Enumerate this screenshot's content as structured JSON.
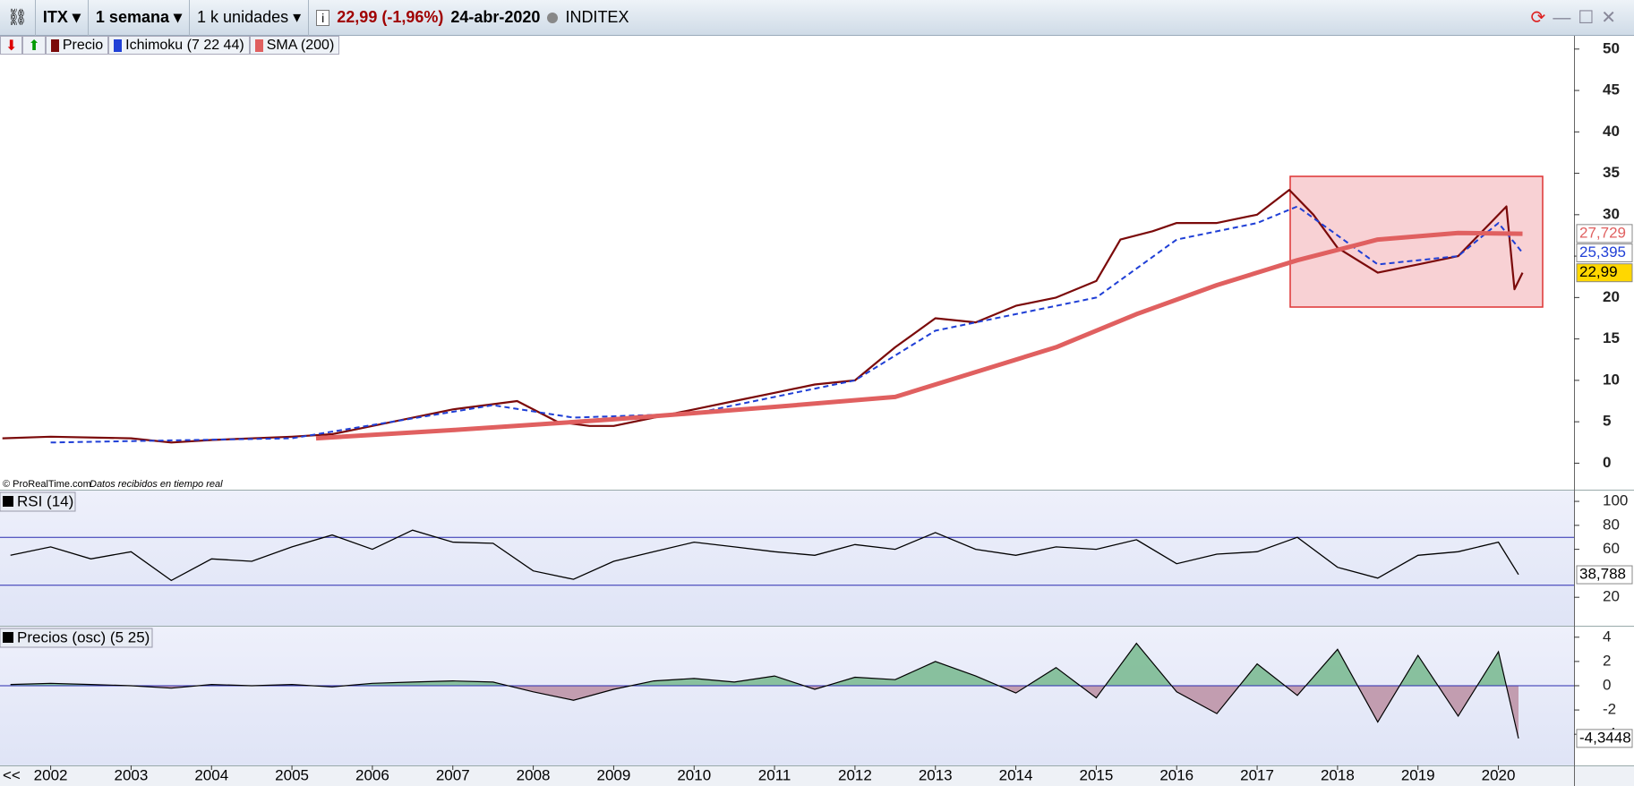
{
  "toolbar": {
    "symbol": "ITX",
    "period": "1 semana",
    "units": "1 k unidades",
    "price_change": "22,99 (-1,96%)",
    "date": "24-abr-2020",
    "name": "INDITEX"
  },
  "credit": {
    "site": "© ProRealTime.com",
    "note": "Datos recibidos en tiempo real"
  },
  "nav": "<<",
  "chart_data": [
    {
      "type": "line",
      "xlim": [
        2001.37,
        2020.94
      ],
      "ylim": [
        -3.2,
        51.6
      ],
      "yticks": [
        0,
        5,
        10,
        15,
        20,
        25,
        30,
        35,
        40,
        45,
        50
      ],
      "series": [
        {
          "name": "Precio",
          "color": "#7b0a0a",
          "x": [
            2001.4,
            2002,
            2003,
            2003.5,
            2004,
            2005,
            2005.5,
            2006,
            2007,
            2007.8,
            2008.3,
            2008.7,
            2009,
            2009.5,
            2010,
            2010.5,
            2011,
            2011.5,
            2012,
            2012.5,
            2013,
            2013.5,
            2014,
            2014.5,
            2015,
            2015.3,
            2015.7,
            2016,
            2016.5,
            2017,
            2017.4,
            2017.7,
            2018,
            2018.5,
            2019,
            2019.5,
            2019.9,
            2020.1,
            2020.2,
            2020.3
          ],
          "values": [
            3,
            3.2,
            3,
            2.5,
            2.8,
            3.2,
            3.5,
            4.5,
            6.5,
            7.5,
            5,
            4.5,
            4.5,
            5.5,
            6.5,
            7.5,
            8.5,
            9.5,
            10,
            14,
            17.5,
            17,
            19,
            20,
            22,
            27,
            28,
            29,
            29,
            30,
            33,
            30,
            26,
            23,
            24,
            25,
            29,
            31,
            21,
            23
          ]
        },
        {
          "name": "Ichimoku (7 22 44)",
          "color": "#1f3fd6",
          "dashed": true,
          "x": [
            2002,
            2005,
            2007.5,
            2008.5,
            2010,
            2012,
            2013,
            2014,
            2015,
            2016,
            2017,
            2017.5,
            2018.5,
            2019.5,
            2020,
            2020.3
          ],
          "values": [
            2.5,
            3,
            7,
            5.5,
            6,
            10,
            16,
            18,
            20,
            27,
            29,
            31,
            24,
            25,
            29,
            25.4
          ]
        },
        {
          "name": "SMA (200)",
          "color": "#e06060",
          "x": [
            2005.3,
            2007,
            2009,
            2011,
            2012.5,
            2013.5,
            2014.5,
            2015.5,
            2016.5,
            2017.5,
            2018.5,
            2019.5,
            2020.3
          ],
          "values": [
            3,
            4,
            5.3,
            6.8,
            8,
            11,
            14,
            18,
            21.5,
            24.5,
            27,
            27.8,
            27.7
          ]
        }
      ],
      "last_labels": [
        {
          "value": 27.729,
          "label": "27,729",
          "color": "#e06060",
          "background": "#ffffff"
        },
        {
          "value": 25.395,
          "label": "25,395",
          "color": "#1f3fd6",
          "background": "#ffffff"
        },
        {
          "value": 22.99,
          "label": "22,99",
          "color": "#000000",
          "background": "#ffd700"
        }
      ]
    },
    {
      "type": "line",
      "title": "RSI (14)",
      "color": "#000000",
      "xlim": [
        2001.37,
        2020.94
      ],
      "ylim": [
        -3,
        109
      ],
      "yticks": [
        20,
        60,
        80,
        100
      ],
      "levels": [
        30,
        70
      ],
      "x": [
        2001.5,
        2002,
        2002.5,
        2003,
        2003.5,
        2004,
        2004.5,
        2005,
        2005.5,
        2006,
        2006.5,
        2007,
        2007.5,
        2008,
        2008.5,
        2009,
        2009.5,
        2010,
        2010.5,
        2011,
        2011.5,
        2012,
        2012.5,
        2013,
        2013.5,
        2014,
        2014.5,
        2015,
        2015.5,
        2016,
        2016.5,
        2017,
        2017.5,
        2018,
        2018.5,
        2019,
        2019.5,
        2020,
        2020.25
      ],
      "values": [
        55,
        62,
        52,
        58,
        34,
        52,
        50,
        62,
        72,
        60,
        76,
        66,
        65,
        42,
        35,
        50,
        58,
        66,
        62,
        58,
        55,
        64,
        60,
        74,
        60,
        55,
        62,
        60,
        68,
        48,
        56,
        58,
        70,
        45,
        36,
        55,
        58,
        66,
        39
      ],
      "last_labels": [
        {
          "value": 38.788,
          "label": "38,788",
          "color": "#000000",
          "background": "#ffffff"
        }
      ]
    },
    {
      "type": "area",
      "title": "Precios (osc) (5 25)",
      "color": "#000000",
      "positive_color": "#6fb587",
      "negative_color": "#b98a9e",
      "xlim": [
        2001.37,
        2020.94
      ],
      "ylim": [
        -6.57,
        4.87
      ],
      "yticks": [
        -4,
        -2,
        0,
        2,
        4
      ],
      "xticks": [
        2002,
        2003,
        2004,
        2005,
        2006,
        2007,
        2008,
        2009,
        2010,
        2011,
        2012,
        2013,
        2014,
        2015,
        2016,
        2017,
        2018,
        2019,
        2020
      ],
      "x": [
        2001.5,
        2002,
        2002.5,
        2003,
        2003.5,
        2004,
        2004.5,
        2005,
        2005.5,
        2006,
        2006.5,
        2007,
        2007.5,
        2008,
        2008.5,
        2009,
        2009.5,
        2010,
        2010.5,
        2011,
        2011.5,
        2012,
        2012.5,
        2013,
        2013.5,
        2014,
        2014.5,
        2015,
        2015.5,
        2016,
        2016.5,
        2017,
        2017.5,
        2018,
        2018.5,
        2019,
        2019.5,
        2020,
        2020.25
      ],
      "values": [
        0.1,
        0.2,
        0.1,
        0,
        -0.2,
        0.1,
        0,
        0.1,
        -0.1,
        0.2,
        0.3,
        0.4,
        0.3,
        -0.5,
        -1.2,
        -0.3,
        0.4,
        0.6,
        0.3,
        0.8,
        -0.3,
        0.7,
        0.5,
        2,
        0.8,
        -0.6,
        1.5,
        -1,
        3.5,
        -0.5,
        -2.3,
        1.8,
        -0.8,
        3,
        -3,
        2.5,
        -2.5,
        2.8,
        -4.3448
      ],
      "last_labels": [
        {
          "value": -4.3448,
          "label": "-4,3448",
          "color": "#000000",
          "background": "#ffffff"
        }
      ]
    }
  ]
}
